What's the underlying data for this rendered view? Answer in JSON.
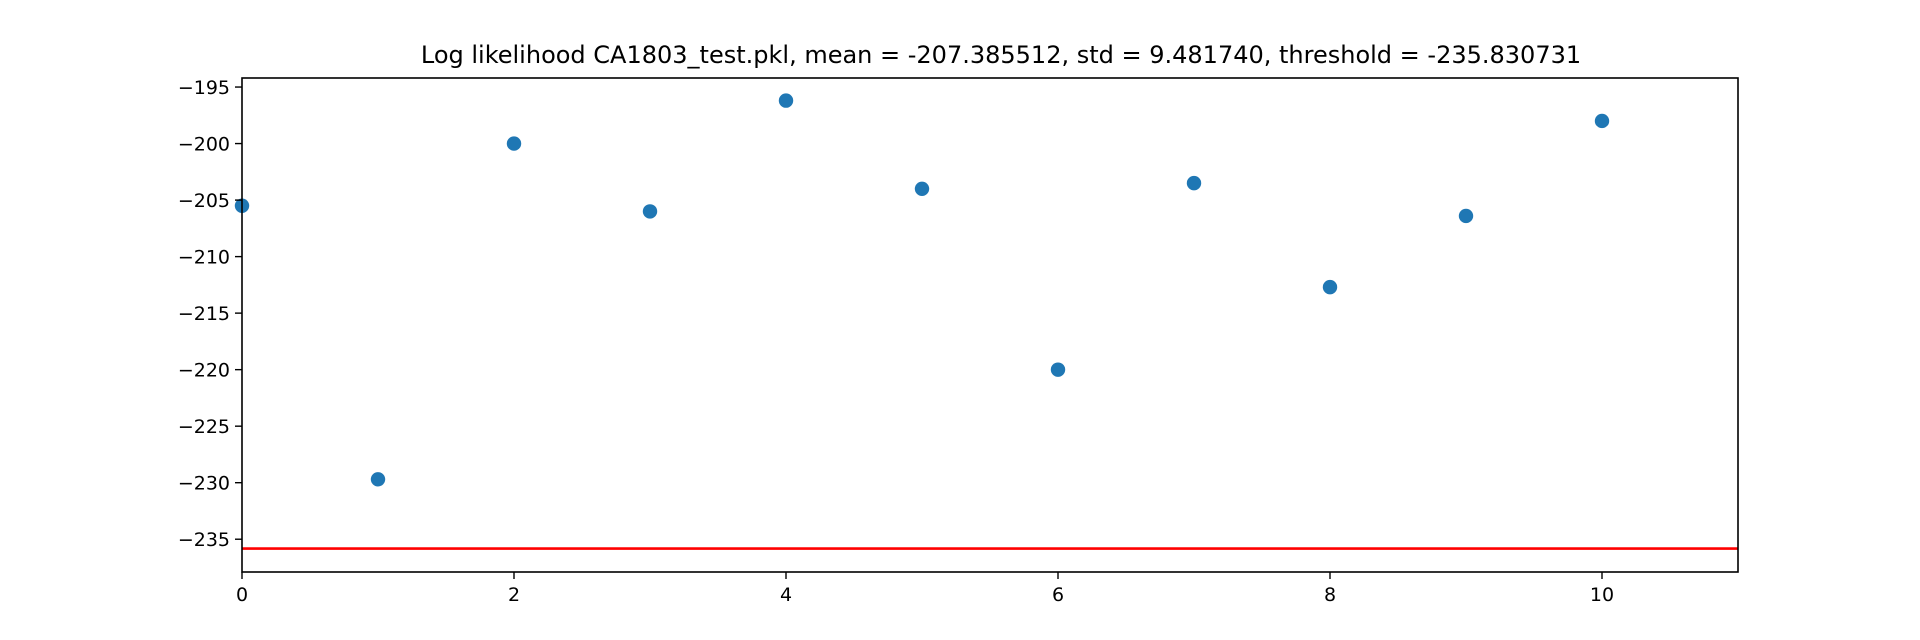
{
  "chart_data": {
    "type": "scatter",
    "title": "Log likelihood CA1803_test.pkl, mean = -207.385512, std = 9.481740, threshold = -235.830731",
    "xlabel": "",
    "ylabel": "",
    "xlim": [
      0,
      11
    ],
    "ylim": [
      -237.9,
      -194.2
    ],
    "xticks": [
      0,
      2,
      4,
      6,
      8,
      10
    ],
    "yticks": [
      -195,
      -200,
      -205,
      -210,
      -215,
      -220,
      -225,
      -230,
      -235
    ],
    "grid": false,
    "series": [
      {
        "color": "#1f77b4",
        "points": [
          {
            "x": 0,
            "y": -205.5
          },
          {
            "x": 1,
            "y": -229.7
          },
          {
            "x": 2,
            "y": -200.0
          },
          {
            "x": 3,
            "y": -206.0
          },
          {
            "x": 4,
            "y": -196.2
          },
          {
            "x": 5,
            "y": -204.0
          },
          {
            "x": 6,
            "y": -220.0
          },
          {
            "x": 7,
            "y": -203.5
          },
          {
            "x": 8,
            "y": -212.7
          },
          {
            "x": 9,
            "y": -206.4
          },
          {
            "x": 10,
            "y": -198.0
          }
        ]
      }
    ],
    "threshold": {
      "value": -235.830731,
      "color": "#ff0000"
    }
  }
}
